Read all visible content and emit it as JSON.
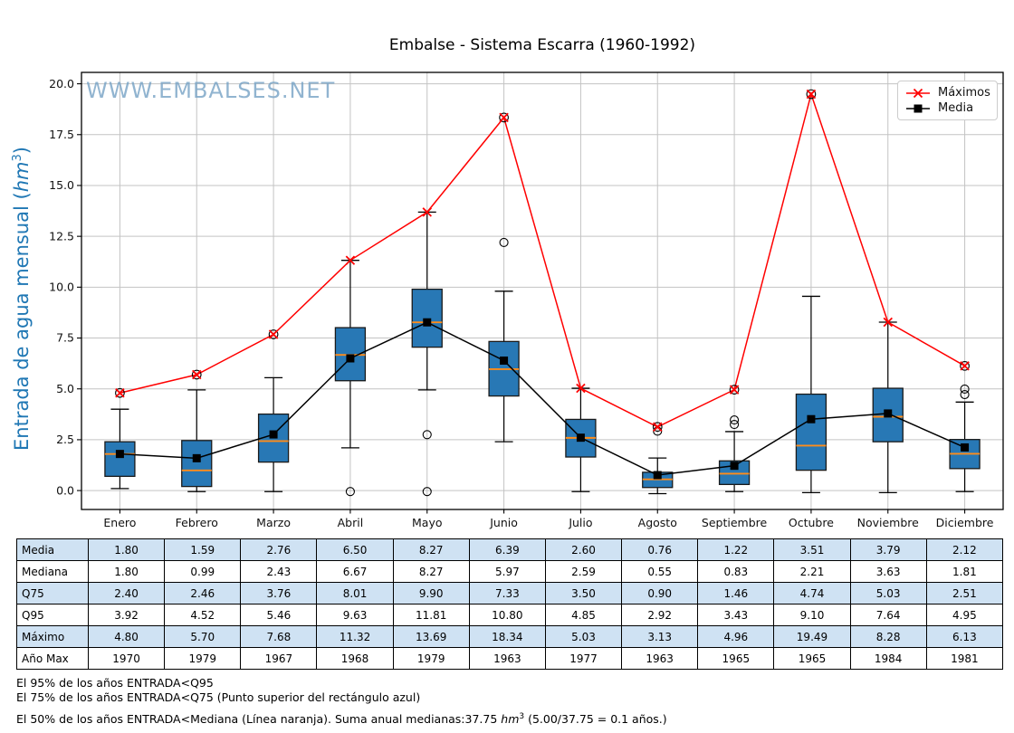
{
  "title": "Embalse - Sistema Escarra (1960-1992)",
  "watermark": "WWW.EMBALSES.NET",
  "ylabel": {
    "prefix": "Entrada de agua mensual (",
    "unit": "hm",
    "exponent": "3",
    "suffix": ")"
  },
  "legend": {
    "items": [
      {
        "label": "Máximos",
        "marker": "x",
        "color": "#ff0000"
      },
      {
        "label": "Media",
        "marker": "square",
        "color": "#000000"
      }
    ]
  },
  "colors": {
    "box_fill": "#2878b5",
    "box_edge": "#1a1a1a",
    "median_line": "#ff8c1a",
    "maximos_line": "#ff0000",
    "media_line": "#000000",
    "grid": "#c3c3c3",
    "frame": "#000000",
    "axis_label_blue": "#1f77b4",
    "table_row_alt": "#cfe2f3",
    "watermark": "#76a2c5"
  },
  "chart_data": {
    "type": "boxplot+lines",
    "categories": [
      "Enero",
      "Febrero",
      "Marzo",
      "Abril",
      "Mayo",
      "Junio",
      "Julio",
      "Agosto",
      "Septiembre",
      "Octubre",
      "Noviembre",
      "Diciembre"
    ],
    "ylim": [
      -0.93,
      20.56
    ],
    "yticks": [
      0.0,
      2.5,
      5.0,
      7.5,
      10.0,
      12.5,
      15.0,
      17.5,
      20.0
    ],
    "grid": true,
    "legend_position": "upper right",
    "box": {
      "q25": [
        0.7,
        0.2,
        1.4,
        5.4,
        7.05,
        4.65,
        1.65,
        0.15,
        0.3,
        1.0,
        2.4,
        1.08
      ],
      "median": [
        1.8,
        0.99,
        2.43,
        6.67,
        8.27,
        5.97,
        2.59,
        0.55,
        0.83,
        2.21,
        3.63,
        1.81
      ],
      "q75": [
        2.4,
        2.46,
        3.76,
        8.01,
        9.9,
        7.33,
        3.5,
        0.9,
        1.46,
        4.74,
        5.03,
        2.51
      ],
      "whisker_low": [
        0.1,
        -0.05,
        -0.05,
        2.1,
        4.95,
        2.4,
        -0.05,
        -0.15,
        -0.05,
        -0.1,
        -0.1,
        -0.05
      ],
      "whisker_high": [
        4.0,
        4.95,
        5.55,
        11.32,
        13.69,
        9.8,
        5.03,
        1.6,
        2.9,
        9.55,
        8.28,
        4.35
      ],
      "outliers": [
        [],
        [],
        [],
        [
          -0.05
        ],
        [
          2.75,
          -0.05
        ],
        [
          12.2
        ],
        [],
        [
          2.92
        ],
        [
          3.25,
          3.47
        ],
        [],
        [],
        [
          4.72,
          4.99
        ]
      ]
    },
    "series": [
      {
        "name": "Máximos",
        "values": [
          4.8,
          5.7,
          7.68,
          11.32,
          13.69,
          18.34,
          5.03,
          3.13,
          4.96,
          19.49,
          8.28,
          6.13
        ],
        "max_is_outlier": [
          true,
          true,
          true,
          false,
          false,
          true,
          false,
          true,
          true,
          true,
          false,
          true
        ]
      },
      {
        "name": "Media",
        "values": [
          1.8,
          1.59,
          2.76,
          6.5,
          8.27,
          6.39,
          2.6,
          0.76,
          1.22,
          3.51,
          3.79,
          2.12
        ]
      }
    ]
  },
  "table": {
    "rows": [
      {
        "label": "Media",
        "values": [
          "1.80",
          "1.59",
          "2.76",
          "6.50",
          "8.27",
          "6.39",
          "2.60",
          "0.76",
          "1.22",
          "3.51",
          "3.79",
          "2.12"
        ]
      },
      {
        "label": "Mediana",
        "values": [
          "1.80",
          "0.99",
          "2.43",
          "6.67",
          "8.27",
          "5.97",
          "2.59",
          "0.55",
          "0.83",
          "2.21",
          "3.63",
          "1.81"
        ]
      },
      {
        "label": "Q75",
        "values": [
          "2.40",
          "2.46",
          "3.76",
          "8.01",
          "9.90",
          "7.33",
          "3.50",
          "0.90",
          "1.46",
          "4.74",
          "5.03",
          "2.51"
        ]
      },
      {
        "label": "Q95",
        "values": [
          "3.92",
          "4.52",
          "5.46",
          "9.63",
          "11.81",
          "10.80",
          "4.85",
          "2.92",
          "3.43",
          "9.10",
          "7.64",
          "4.95"
        ]
      },
      {
        "label": "Máximo",
        "values": [
          "4.80",
          "5.70",
          "7.68",
          "11.32",
          "13.69",
          "18.34",
          "5.03",
          "3.13",
          "4.96",
          "19.49",
          "8.28",
          "6.13"
        ]
      },
      {
        "label": "Año Max",
        "values": [
          "1970",
          "1979",
          "1967",
          "1968",
          "1979",
          "1963",
          "1977",
          "1963",
          "1965",
          "1965",
          "1984",
          "1981"
        ]
      }
    ]
  },
  "footer": {
    "line1": "El 95% de los años ENTRADA<Q95",
    "line2": "El 75% de los años ENTRADA<Q75 (Punto superior del rectángulo azul)",
    "line3_prefix": "El 50% de los años ENTRADA<Mediana (Línea naranja). Suma anual medianas:37.75 ",
    "line3_unit": "hm",
    "line3_exp": "3",
    "line3_suffix": " (5.00/37.75 = 0.1 años.)"
  }
}
